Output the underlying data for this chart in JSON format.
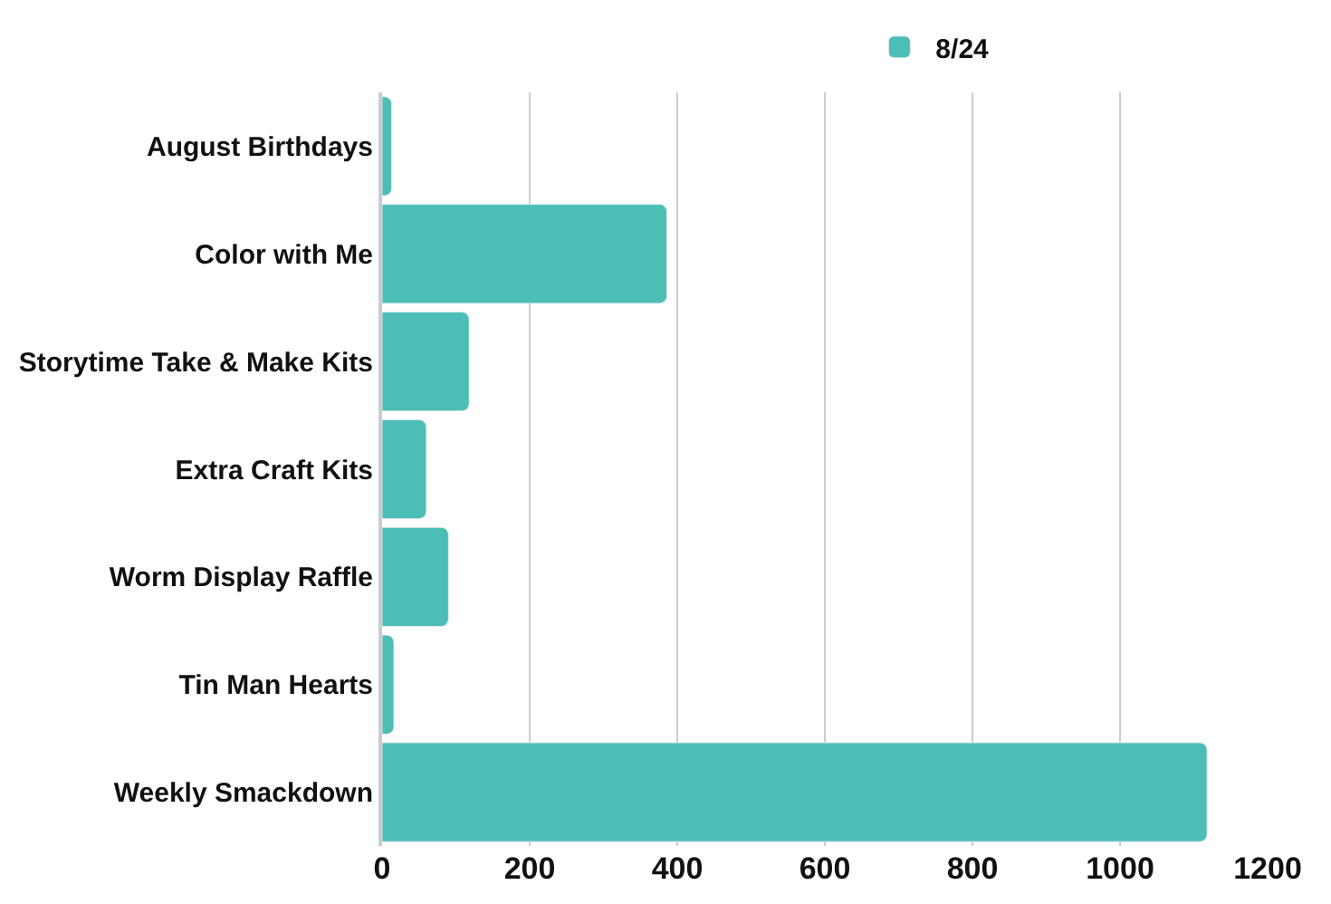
{
  "chart_data": {
    "type": "bar",
    "orientation": "horizontal",
    "categories": [
      "August Birthdays",
      "Color with Me",
      "Storytime Take & Make Kits",
      "Extra Craft Kits",
      "Worm Display Raffle",
      "Tin Man Hearts",
      "Weekly Smackdown"
    ],
    "series": [
      {
        "name": "8/24",
        "color": "#4cbeb6",
        "values": [
          13,
          386,
          118,
          60,
          90,
          16,
          1118
        ]
      }
    ],
    "xlim": [
      0,
      1200
    ],
    "xticks": [
      0,
      200,
      400,
      600,
      800,
      1000,
      1200
    ],
    "grid": "x",
    "legend": "top"
  }
}
